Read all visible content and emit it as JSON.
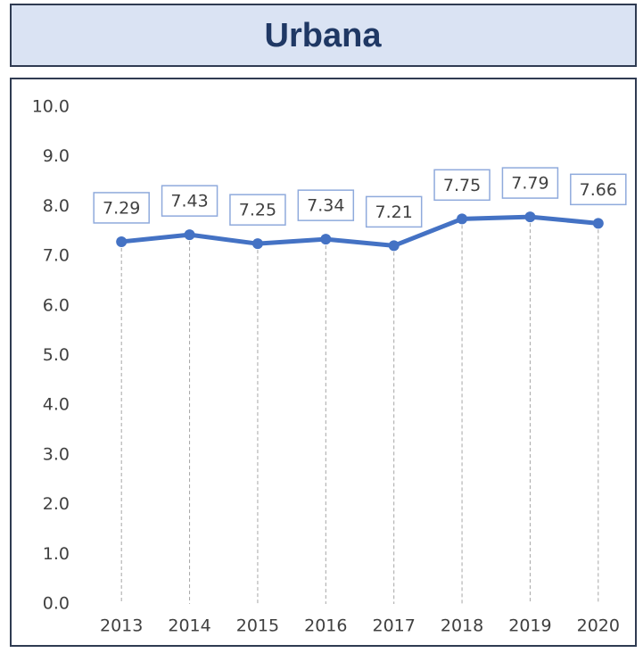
{
  "chart_data": {
    "type": "line",
    "title": "Urbana",
    "categories": [
      "2013",
      "2014",
      "2015",
      "2016",
      "2017",
      "2018",
      "2019",
      "2020"
    ],
    "values": [
      7.29,
      7.43,
      7.25,
      7.34,
      7.21,
      7.75,
      7.79,
      7.66
    ],
    "color": "#4472c4",
    "ylim": [
      0,
      10
    ],
    "yticks": [
      {
        "value": 0,
        "label": "0.0"
      },
      {
        "value": 1,
        "label": "1.0"
      },
      {
        "value": 2,
        "label": "2.0"
      },
      {
        "value": 3,
        "label": "3.0"
      },
      {
        "value": 4,
        "label": "4.0"
      },
      {
        "value": 5,
        "label": "5.0"
      },
      {
        "value": 6,
        "label": "6.0"
      },
      {
        "value": 7,
        "label": "7.0"
      },
      {
        "value": 8,
        "label": "8.0"
      },
      {
        "value": 9,
        "label": "9.0"
      },
      {
        "value": 10,
        "label": "10.0"
      }
    ],
    "grid": false
  }
}
